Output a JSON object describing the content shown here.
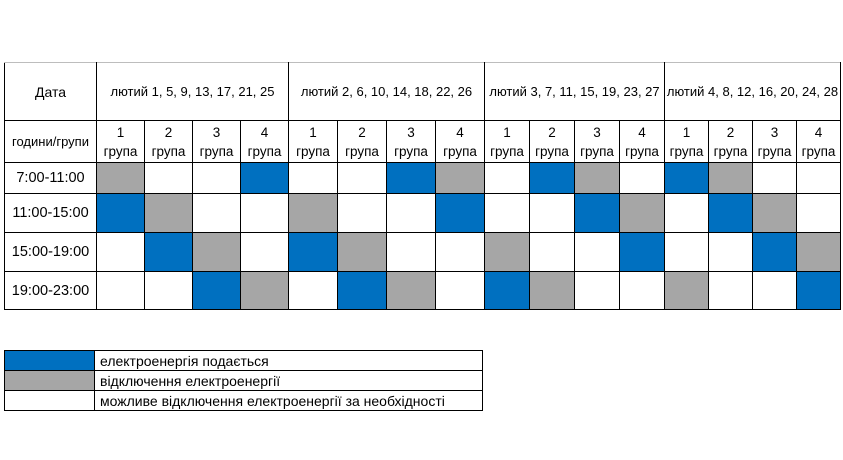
{
  "chart_data": {
    "type": "table",
    "corner_label": "Дата",
    "hours_groups_label": "години/групи",
    "date_groups": [
      "лютий 1, 5, 9, 13, 17, 21, 25",
      "лютий 2, 6, 10, 14, 18, 22, 26",
      "лютий 3, 7, 11, 15, 19, 23, 27",
      "лютий 4, 8, 12, 16, 20, 24, 28"
    ],
    "group_numbers": [
      "1",
      "2",
      "3",
      "4"
    ],
    "group_word": "група",
    "time_rows": [
      "7:00-11:00",
      "11:00-15:00",
      "15:00-19:00",
      "19:00-23:00"
    ],
    "cell_states": [
      [
        "off",
        "maybe",
        "maybe",
        "on",
        "maybe",
        "maybe",
        "on",
        "off",
        "maybe",
        "on",
        "off",
        "maybe",
        "on",
        "off",
        "maybe",
        "maybe"
      ],
      [
        "on",
        "off",
        "maybe",
        "maybe",
        "off",
        "maybe",
        "maybe",
        "on",
        "maybe",
        "maybe",
        "on",
        "off",
        "maybe",
        "on",
        "off",
        "maybe"
      ],
      [
        "maybe",
        "on",
        "off",
        "maybe",
        "on",
        "off",
        "maybe",
        "maybe",
        "off",
        "maybe",
        "maybe",
        "on",
        "maybe",
        "maybe",
        "on",
        "off"
      ],
      [
        "maybe",
        "maybe",
        "on",
        "off",
        "maybe",
        "on",
        "off",
        "maybe",
        "on",
        "off",
        "maybe",
        "maybe",
        "off",
        "maybe",
        "maybe",
        "on"
      ]
    ],
    "colors": {
      "on": "#0070C0",
      "off": "#A6A6A6",
      "maybe": "#FFFFFF"
    },
    "legend": [
      {
        "state": "on",
        "label": "електроенергія подається"
      },
      {
        "state": "off",
        "label": "відключення електроенергії"
      },
      {
        "state": "maybe",
        "label": "можливе відключення електроенергії за необхідності"
      }
    ]
  }
}
